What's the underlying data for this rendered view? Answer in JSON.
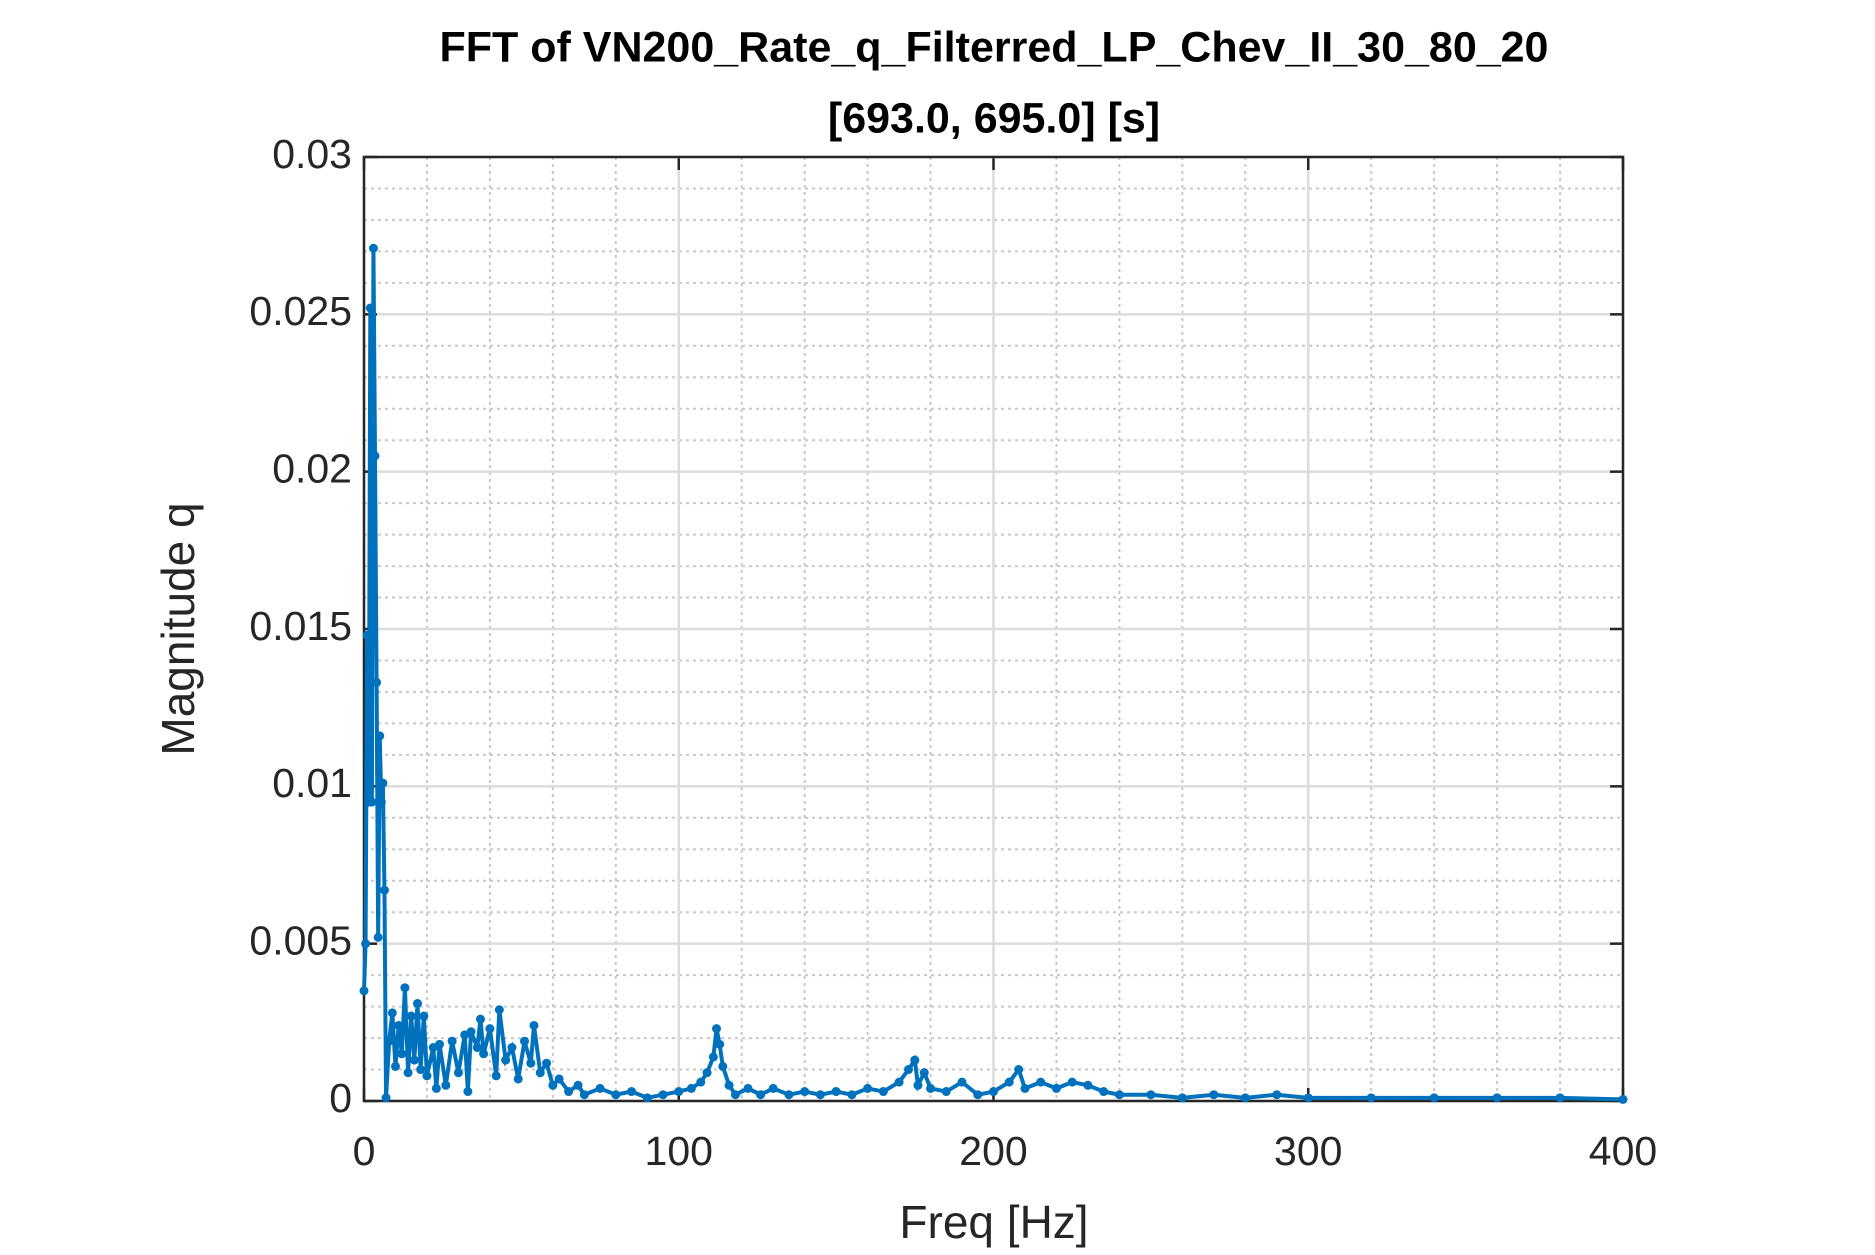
{
  "chart_data": {
    "type": "line",
    "title": "FFT of VN200_Rate_q_Filterred_LP_Chev_II_30_80_20",
    "subtitle": "[693.0, 695.0] [s]",
    "x_label": "Freq [Hz]",
    "y_label": "Magnitude q",
    "x": [
      0,
      0.5,
      1,
      1.5,
      2,
      2.5,
      3,
      3.5,
      4,
      4.5,
      5,
      5.5,
      6,
      6.5,
      7,
      8,
      9,
      10,
      11,
      12,
      13,
      14,
      15,
      16,
      17,
      18,
      19,
      20,
      22,
      23,
      24,
      26,
      28,
      30,
      32,
      33,
      34,
      36,
      37,
      38,
      40,
      42,
      43,
      45,
      47,
      49,
      51,
      53,
      54,
      56,
      58,
      60,
      62,
      65,
      68,
      70,
      75,
      80,
      85,
      90,
      95,
      100,
      104,
      107,
      109,
      111,
      112,
      113,
      114,
      116,
      118,
      122,
      126,
      130,
      135,
      140,
      145,
      150,
      155,
      160,
      165,
      170,
      173,
      175,
      176,
      178,
      180,
      185,
      190,
      195,
      200,
      205,
      208,
      210,
      215,
      220,
      225,
      230,
      235,
      240,
      250,
      260,
      270,
      280,
      290,
      300,
      320,
      340,
      360,
      380,
      400
    ],
    "series": [
      {
        "name": "Magnitude q",
        "color": "#0072bd",
        "values": [
          0.0035,
          0.005,
          0.0148,
          0.0095,
          0.0252,
          0.0095,
          0.0271,
          0.0205,
          0.0133,
          0.0052,
          0.0116,
          0.0095,
          0.0101,
          0.0067,
          0.0001,
          0.0019,
          0.0028,
          0.0011,
          0.0024,
          0.0015,
          0.0036,
          0.0009,
          0.0027,
          0.0013,
          0.0031,
          0.001,
          0.0027,
          0.0008,
          0.0017,
          0.0004,
          0.0018,
          0.0005,
          0.0019,
          0.0009,
          0.0021,
          0.0003,
          0.0022,
          0.0017,
          0.0026,
          0.0015,
          0.0023,
          0.0008,
          0.0029,
          0.0013,
          0.0017,
          0.0007,
          0.0019,
          0.0012,
          0.0024,
          0.0009,
          0.0012,
          0.0005,
          0.0007,
          0.0003,
          0.0005,
          0.0002,
          0.0004,
          0.0002,
          0.0003,
          0.0001,
          0.0002,
          0.0003,
          0.0004,
          0.0006,
          0.0009,
          0.0014,
          0.0023,
          0.0018,
          0.0011,
          0.0005,
          0.0002,
          0.0004,
          0.0002,
          0.0004,
          0.0002,
          0.0003,
          0.0002,
          0.0003,
          0.0002,
          0.0004,
          0.0003,
          0.0006,
          0.001,
          0.0013,
          0.0005,
          0.0009,
          0.0004,
          0.0003,
          0.0006,
          0.0002,
          0.0003,
          0.0006,
          0.001,
          0.0004,
          0.0006,
          0.0004,
          0.0006,
          0.0005,
          0.0003,
          0.0002,
          0.0002,
          0.0001,
          0.0002,
          0.0001,
          0.0002,
          0.0001,
          0.0001,
          0.0001,
          0.0001,
          0.0001,
          5e-05
        ]
      }
    ],
    "xlim": [
      0,
      400
    ],
    "xticks": [
      0,
      100,
      200,
      300,
      400
    ],
    "ylim": [
      0,
      0.03
    ],
    "yticks": [
      0,
      0.005,
      0.01,
      0.015,
      0.02,
      0.025,
      0.03
    ],
    "grid": true,
    "minor_grid": true
  }
}
